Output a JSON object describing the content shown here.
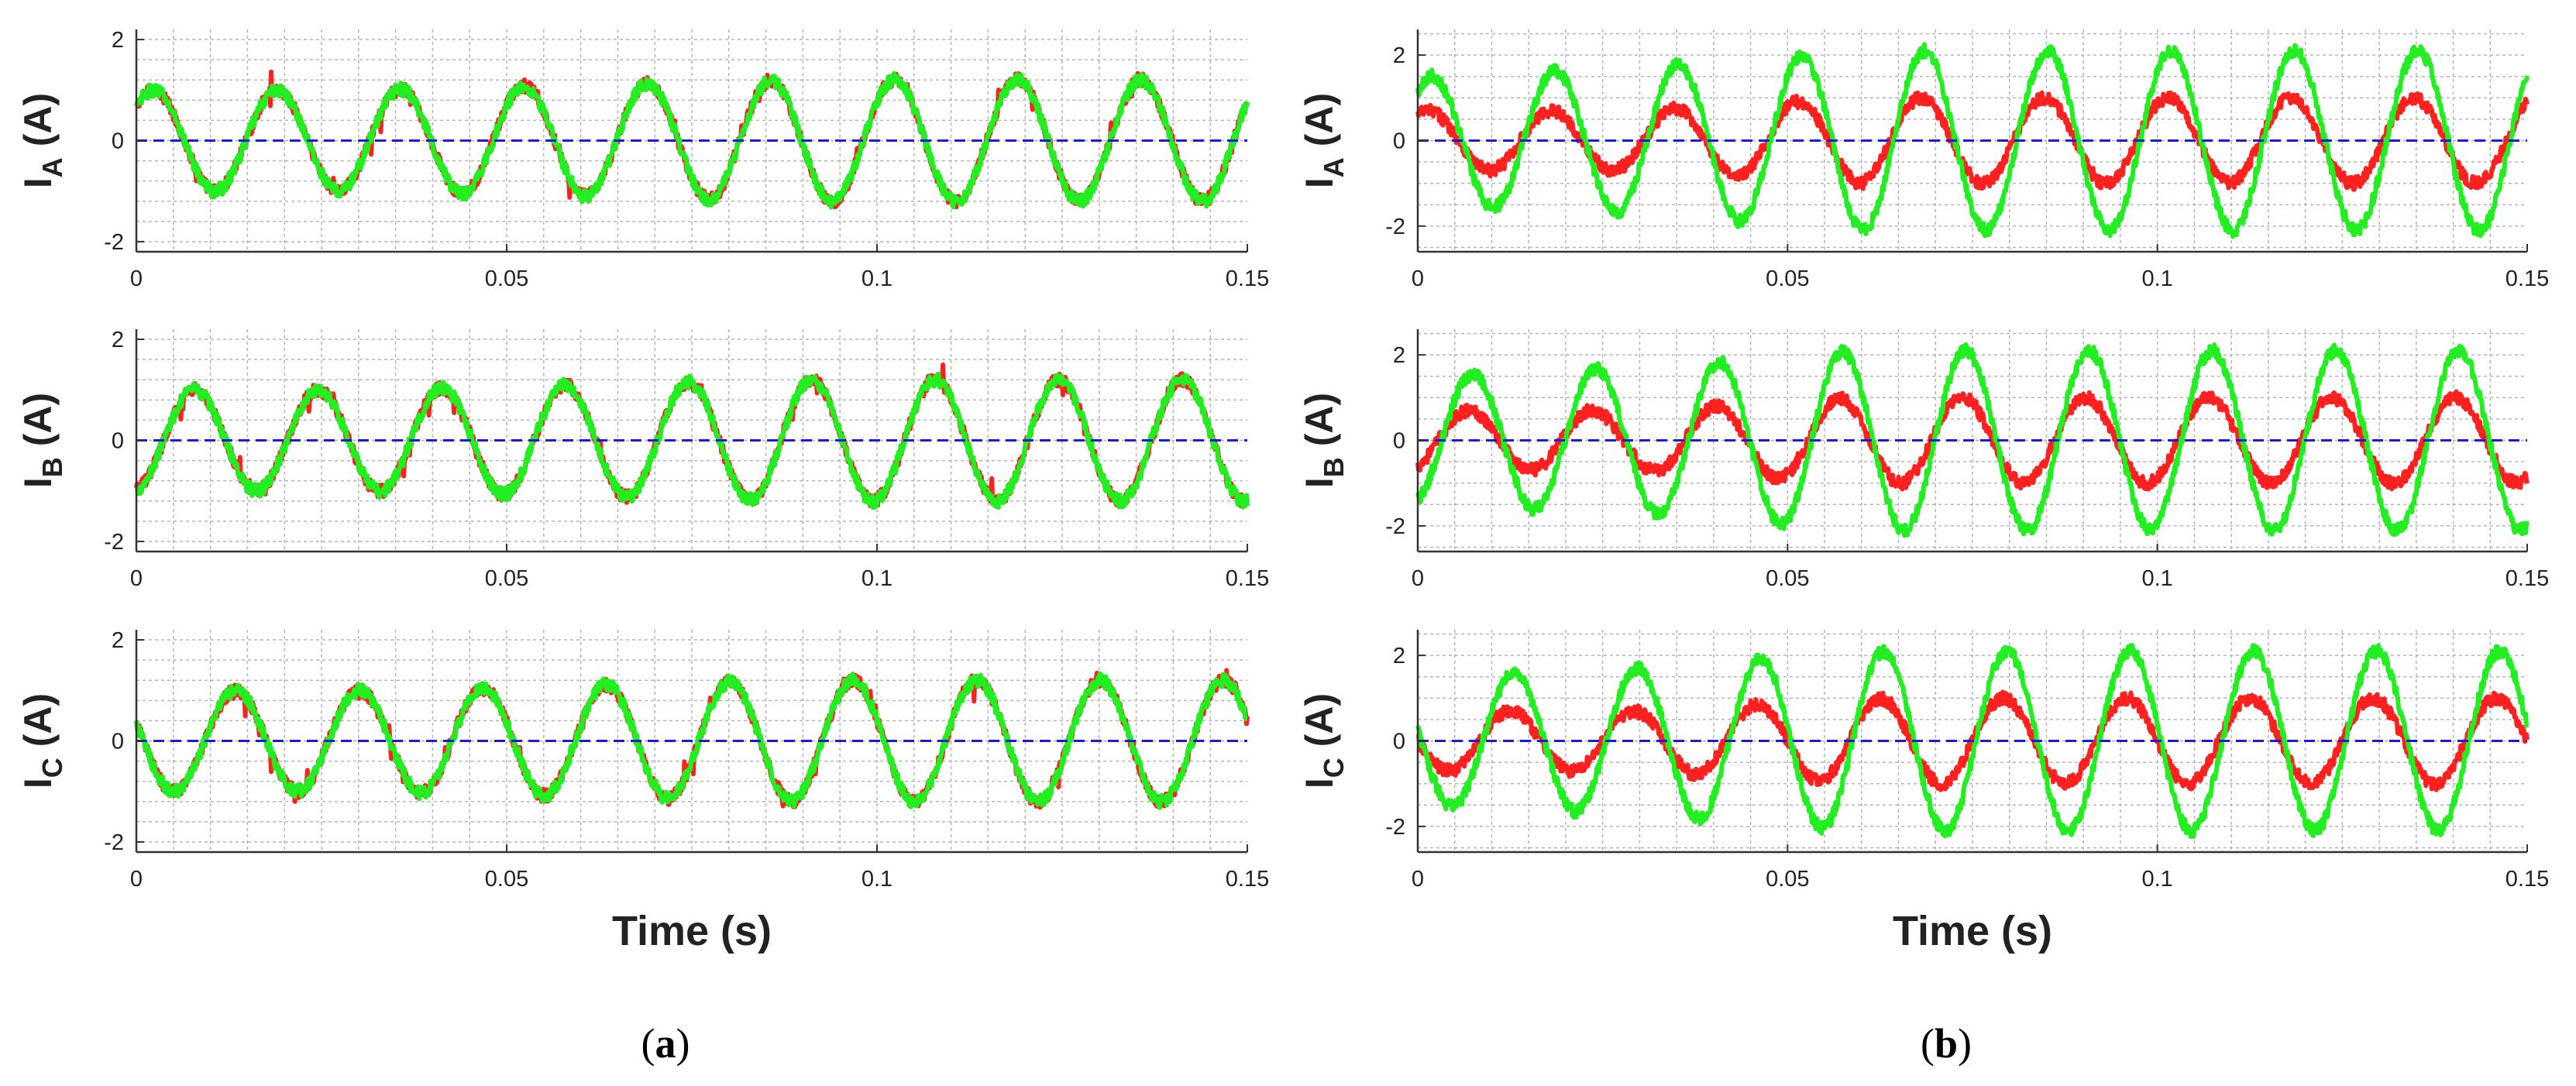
{
  "colors": {
    "series_1": "#ff2020",
    "series_2": "#22ee22",
    "zero_line": "#1a1ad8",
    "grid": "#b4b4b4",
    "axes": "#333333"
  },
  "chart_data": [
    {
      "type": "line",
      "panel": "a",
      "caption": "a",
      "ylabel_main": "I",
      "ylabel_sub": "A",
      "ylabel_unit": " (A)",
      "xlabel": "",
      "xlim": [
        0,
        0.15
      ],
      "ylim": [
        -2.2,
        2.2
      ],
      "x_ticks": [
        "0",
        "0.05",
        "0.1",
        "0.15"
      ],
      "y_ticks": [
        "2",
        "0",
        "-2"
      ],
      "grid": true,
      "frequency_hz": 60,
      "dashed_zero_line": true,
      "series": [
        {
          "amplitude": [
            1.0,
            1.0,
            1.1,
            1.2,
            1.2,
            1.2
          ],
          "phase_deg": 40,
          "noise": 0.13,
          "spike_amplitude": 0.3
        },
        {
          "amplitude": [
            1.0,
            1.0,
            1.1,
            1.2,
            1.2,
            1.2
          ],
          "phase_deg": 40,
          "noise": 0.13
        }
      ]
    },
    {
      "type": "line",
      "panel": "a",
      "ylabel_main": "I",
      "ylabel_sub": "B",
      "ylabel_unit": " (A)",
      "xlabel": "",
      "xlim": [
        0,
        0.15
      ],
      "ylim": [
        -2.2,
        2.2
      ],
      "x_ticks": [
        "0",
        "0.05",
        "0.1",
        "0.15"
      ],
      "y_ticks": [
        "2",
        "0",
        "-2"
      ],
      "grid": true,
      "frequency_hz": 60,
      "dashed_zero_line": true,
      "series": [
        {
          "amplitude": [
            1.0,
            1.0,
            1.1,
            1.2,
            1.2,
            1.2
          ],
          "phase_deg": -80,
          "noise": 0.13,
          "spike_amplitude": 0.3
        },
        {
          "amplitude": [
            1.0,
            1.0,
            1.1,
            1.2,
            1.2,
            1.2
          ],
          "phase_deg": -80,
          "noise": 0.13
        }
      ]
    },
    {
      "type": "line",
      "panel": "a",
      "ylabel_main": "I",
      "ylabel_sub": "C",
      "ylabel_unit": " (A)",
      "xlabel": "Time (s)",
      "xlim": [
        0,
        0.15
      ],
      "ylim": [
        -2.2,
        2.2
      ],
      "x_ticks": [
        "0",
        "0.05",
        "0.1",
        "0.15"
      ],
      "y_ticks": [
        "2",
        "0",
        "-2"
      ],
      "grid": true,
      "frequency_hz": 60,
      "dashed_zero_line": true,
      "series": [
        {
          "amplitude": [
            1.0,
            1.0,
            1.1,
            1.2,
            1.2,
            1.2
          ],
          "phase_deg": 160,
          "noise": 0.13,
          "spike_amplitude": 0.3
        },
        {
          "amplitude": [
            1.0,
            1.0,
            1.1,
            1.2,
            1.2,
            1.2
          ],
          "phase_deg": 160,
          "noise": 0.13
        }
      ]
    },
    {
      "type": "line",
      "panel": "b",
      "caption": "b",
      "ylabel_main": "I",
      "ylabel_sub": "A",
      "ylabel_unit": " (A)",
      "xlabel": "",
      "xlim": [
        0,
        0.15
      ],
      "ylim": [
        -2.6,
        2.6
      ],
      "x_ticks": [
        "0",
        "0.05",
        "0.1",
        "0.15"
      ],
      "y_ticks": [
        "2",
        "0",
        "-2"
      ],
      "grid": true,
      "frequency_hz": 60,
      "dashed_zero_line": true,
      "series": [
        {
          "amplitude": [
            0.7,
            0.7,
            1.0,
            1.0,
            1.0,
            1.0
          ],
          "phase_deg": 60,
          "noise": 0.15
        },
        {
          "amplitude": [
            1.5,
            1.7,
            2.1,
            2.1,
            2.1,
            2.1
          ],
          "phase_deg": 50,
          "noise": 0.15
        }
      ]
    },
    {
      "type": "line",
      "panel": "b",
      "ylabel_main": "I",
      "ylabel_sub": "B",
      "ylabel_unit": " (A)",
      "xlabel": "",
      "xlim": [
        0,
        0.15
      ],
      "ylim": [
        -2.6,
        2.6
      ],
      "x_ticks": [
        "0",
        "0.05",
        "0.1",
        "0.15"
      ],
      "y_ticks": [
        "2",
        "0",
        "-2"
      ],
      "grid": true,
      "frequency_hz": 60,
      "dashed_zero_line": true,
      "series": [
        {
          "amplitude": [
            0.7,
            0.7,
            1.0,
            1.0,
            1.0,
            1.0
          ],
          "phase_deg": -60,
          "noise": 0.15
        },
        {
          "amplitude": [
            1.5,
            1.7,
            2.1,
            2.1,
            2.1,
            2.1
          ],
          "phase_deg": -70,
          "noise": 0.15
        }
      ]
    },
    {
      "type": "line",
      "panel": "b",
      "ylabel_main": "I",
      "ylabel_sub": "C",
      "ylabel_unit": " (A)",
      "xlabel": "Time (s)",
      "xlim": [
        0,
        0.15
      ],
      "ylim": [
        -2.6,
        2.6
      ],
      "x_ticks": [
        "0",
        "0.05",
        "0.1",
        "0.15"
      ],
      "y_ticks": [
        "2",
        "0",
        "-2"
      ],
      "grid": true,
      "frequency_hz": 60,
      "dashed_zero_line": true,
      "series": [
        {
          "amplitude": [
            0.7,
            0.7,
            1.0,
            1.0,
            1.0,
            1.0
          ],
          "phase_deg": 180,
          "noise": 0.15
        },
        {
          "amplitude": [
            1.5,
            1.7,
            2.1,
            2.1,
            2.1,
            2.1
          ],
          "phase_deg": 170,
          "noise": 0.15
        }
      ]
    }
  ]
}
